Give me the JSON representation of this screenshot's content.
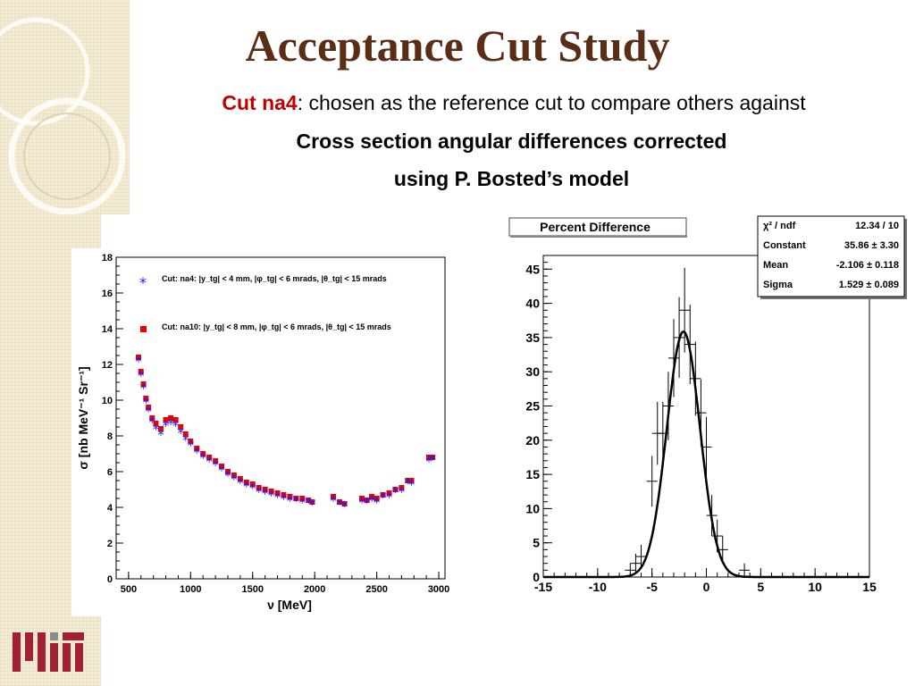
{
  "slide": {
    "title": "Acceptance Cut Study",
    "line1_red": "Cut na4",
    "line1_rest": ": chosen as the reference cut to compare others against",
    "line2": "Cross section angular differences corrected",
    "line3": "using P. Bosted’s model"
  },
  "colors": {
    "title": "#5a2d17",
    "accent_red": "#c00000",
    "series_blue": "#1a1aff",
    "series_red": "#ee0000",
    "band": "#f3ecd3"
  },
  "chart_data": [
    {
      "type": "scatter",
      "xlabel": "ν  [MeV]",
      "ylabel": "σ [nb MeV⁻¹ Sr⁻¹]",
      "xlim": [
        400,
        3050
      ],
      "ylim": [
        0,
        18
      ],
      "xticks": [
        500,
        1000,
        1500,
        2000,
        2500,
        3000
      ],
      "yticks": [
        0,
        2,
        4,
        6,
        8,
        10,
        12,
        14,
        16,
        18
      ],
      "legend": [
        {
          "marker": "*",
          "color": "#1a1aff",
          "text": "Cut: na4: |y_tg| < 4 mm, |φ_tg| < 6 mrads, |θ_tg| < 15 mrads"
        },
        {
          "marker": "square",
          "color": "#ee0000",
          "text": "Cut: na10: |y_tg| < 8 mm, |φ_tg| < 6 mrads, |θ_tg| < 15 mrads"
        }
      ],
      "series": [
        {
          "name": "Cut: na4",
          "x": [
            580,
            600,
            620,
            640,
            660,
            690,
            720,
            760,
            800,
            840,
            880,
            920,
            960,
            1000,
            1050,
            1100,
            1150,
            1200,
            1250,
            1300,
            1350,
            1400,
            1450,
            1500,
            1550,
            1600,
            1650,
            1700,
            1750,
            1800,
            1850,
            1900,
            1950,
            1980,
            2150,
            2200,
            2240,
            2380,
            2420,
            2460,
            2500,
            2550,
            2600,
            2650,
            2700,
            2750,
            2780,
            2920,
            2950
          ],
          "y": [
            12.2,
            11.4,
            10.7,
            9.9,
            9.4,
            8.8,
            8.4,
            8.1,
            8.6,
            8.7,
            8.6,
            8.2,
            7.8,
            7.5,
            7.1,
            6.8,
            6.6,
            6.4,
            6.1,
            5.8,
            5.6,
            5.4,
            5.2,
            5.1,
            4.9,
            4.8,
            4.7,
            4.6,
            4.5,
            4.4,
            4.4,
            4.3,
            4.3,
            4.2,
            4.4,
            4.2,
            4.1,
            4.3,
            4.3,
            4.4,
            4.3,
            4.6,
            4.6,
            4.9,
            4.9,
            5.4,
            5.3,
            6.6,
            6.7
          ]
        },
        {
          "name": "Cut: na10",
          "x": [
            580,
            600,
            620,
            640,
            660,
            690,
            720,
            760,
            800,
            840,
            880,
            920,
            960,
            1000,
            1050,
            1100,
            1150,
            1200,
            1250,
            1300,
            1350,
            1400,
            1450,
            1500,
            1550,
            1600,
            1650,
            1700,
            1750,
            1800,
            1850,
            1900,
            1950,
            1980,
            2150,
            2200,
            2240,
            2380,
            2420,
            2460,
            2500,
            2550,
            2600,
            2650,
            2700,
            2750,
            2780,
            2920,
            2950
          ],
          "y": [
            12.4,
            11.6,
            10.9,
            10.1,
            9.6,
            9.0,
            8.7,
            8.4,
            8.9,
            9.0,
            8.9,
            8.5,
            8.1,
            7.7,
            7.3,
            7.0,
            6.8,
            6.6,
            6.3,
            6.0,
            5.8,
            5.6,
            5.4,
            5.3,
            5.1,
            5.0,
            4.9,
            4.8,
            4.7,
            4.6,
            4.5,
            4.5,
            4.4,
            4.3,
            4.6,
            4.3,
            4.2,
            4.5,
            4.4,
            4.6,
            4.5,
            4.7,
            4.8,
            5.0,
            5.1,
            5.5,
            5.5,
            6.8,
            6.8
          ]
        }
      ]
    },
    {
      "type": "bar",
      "title": "Percent Difference",
      "xlim": [
        -15,
        15
      ],
      "ylim": [
        0,
        47
      ],
      "xticks": [
        -15,
        -10,
        -5,
        0,
        5,
        10,
        15
      ],
      "yticks": [
        0,
        5,
        10,
        15,
        20,
        25,
        30,
        35,
        40,
        45
      ],
      "histogram": {
        "x": [
          -7,
          -6.5,
          -6,
          -5,
          -4.5,
          -4,
          -3.5,
          -3,
          -2.5,
          -2,
          -1.5,
          -1,
          -0.5,
          0,
          0.5,
          1,
          1.5,
          3.5
        ],
        "y": [
          1,
          2,
          3,
          14,
          21,
          21,
          25,
          32,
          35,
          39,
          34,
          29,
          24,
          19,
          9,
          6,
          4,
          1
        ],
        "err": [
          1,
          1.4,
          1.7,
          3.7,
          4.6,
          4.6,
          5,
          5.7,
          5.9,
          6.2,
          5.8,
          5.4,
          4.9,
          4.4,
          3,
          2.4,
          2,
          1
        ]
      },
      "fit": {
        "constant": 35.86,
        "mean": -2.106,
        "sigma": 1.529
      },
      "stats": [
        {
          "label": "χ² / ndf",
          "value": "12.34 / 10"
        },
        {
          "label": "Constant",
          "value": "35.86 ± 3.30"
        },
        {
          "label": "Mean",
          "value": "-2.106 ± 0.118"
        },
        {
          "label": "Sigma",
          "value": "1.529 ± 0.089"
        }
      ]
    }
  ]
}
